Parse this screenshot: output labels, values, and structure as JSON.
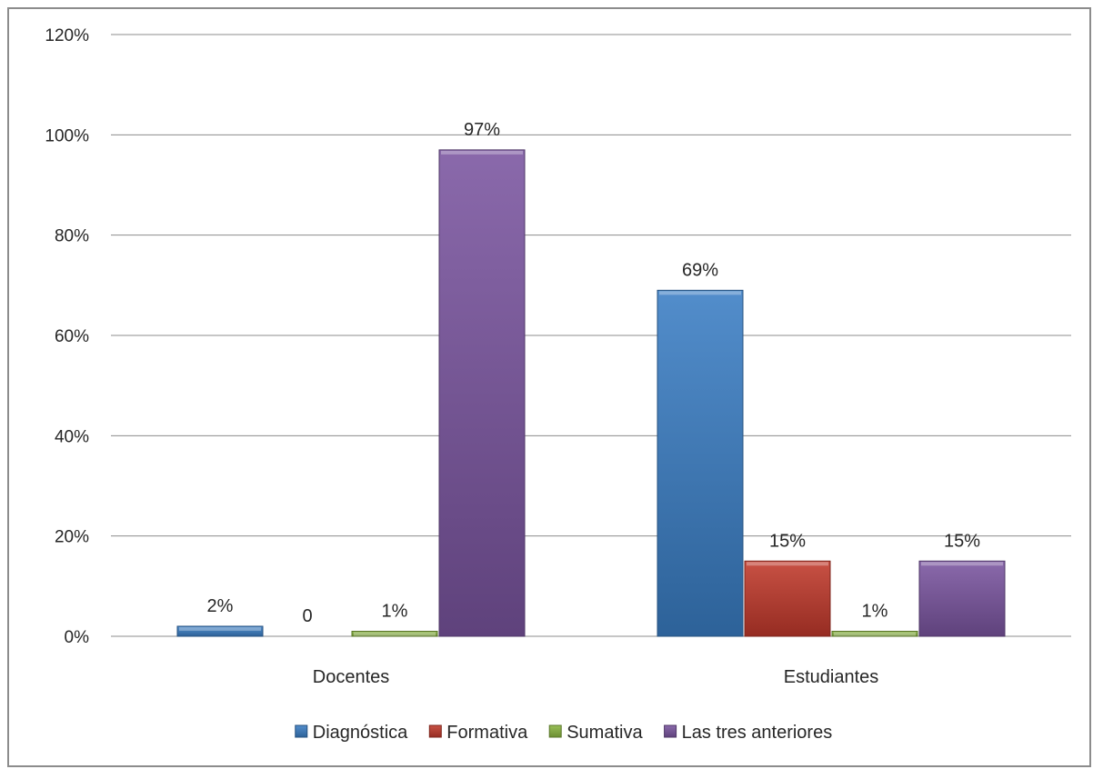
{
  "chart_data": {
    "type": "bar",
    "categories": [
      "Docentes",
      "Estudiantes"
    ],
    "series": [
      {
        "name": "Diagnóstica",
        "color": "#3a7dc4",
        "values": [
          2,
          69
        ],
        "labels": [
          "2%",
          "69%"
        ]
      },
      {
        "name": "Formativa",
        "color": "#c0392b",
        "values": [
          0,
          15
        ],
        "labels": [
          "0",
          "15%"
        ]
      },
      {
        "name": "Sumativa",
        "color": "#8ab640",
        "values": [
          1,
          1
        ],
        "labels": [
          "1%",
          "1%"
        ]
      },
      {
        "name": "Las tres anteriores",
        "color": "#7a559f",
        "values": [
          97,
          15
        ],
        "labels": [
          "97%",
          "15%"
        ]
      }
    ],
    "ylim": [
      0,
      120
    ],
    "yticks": [
      "0%",
      "20%",
      "40%",
      "60%",
      "80%",
      "100%",
      "120%"
    ],
    "grid": true,
    "legend_position": "bottom",
    "title": "",
    "xlabel": "",
    "ylabel": ""
  }
}
